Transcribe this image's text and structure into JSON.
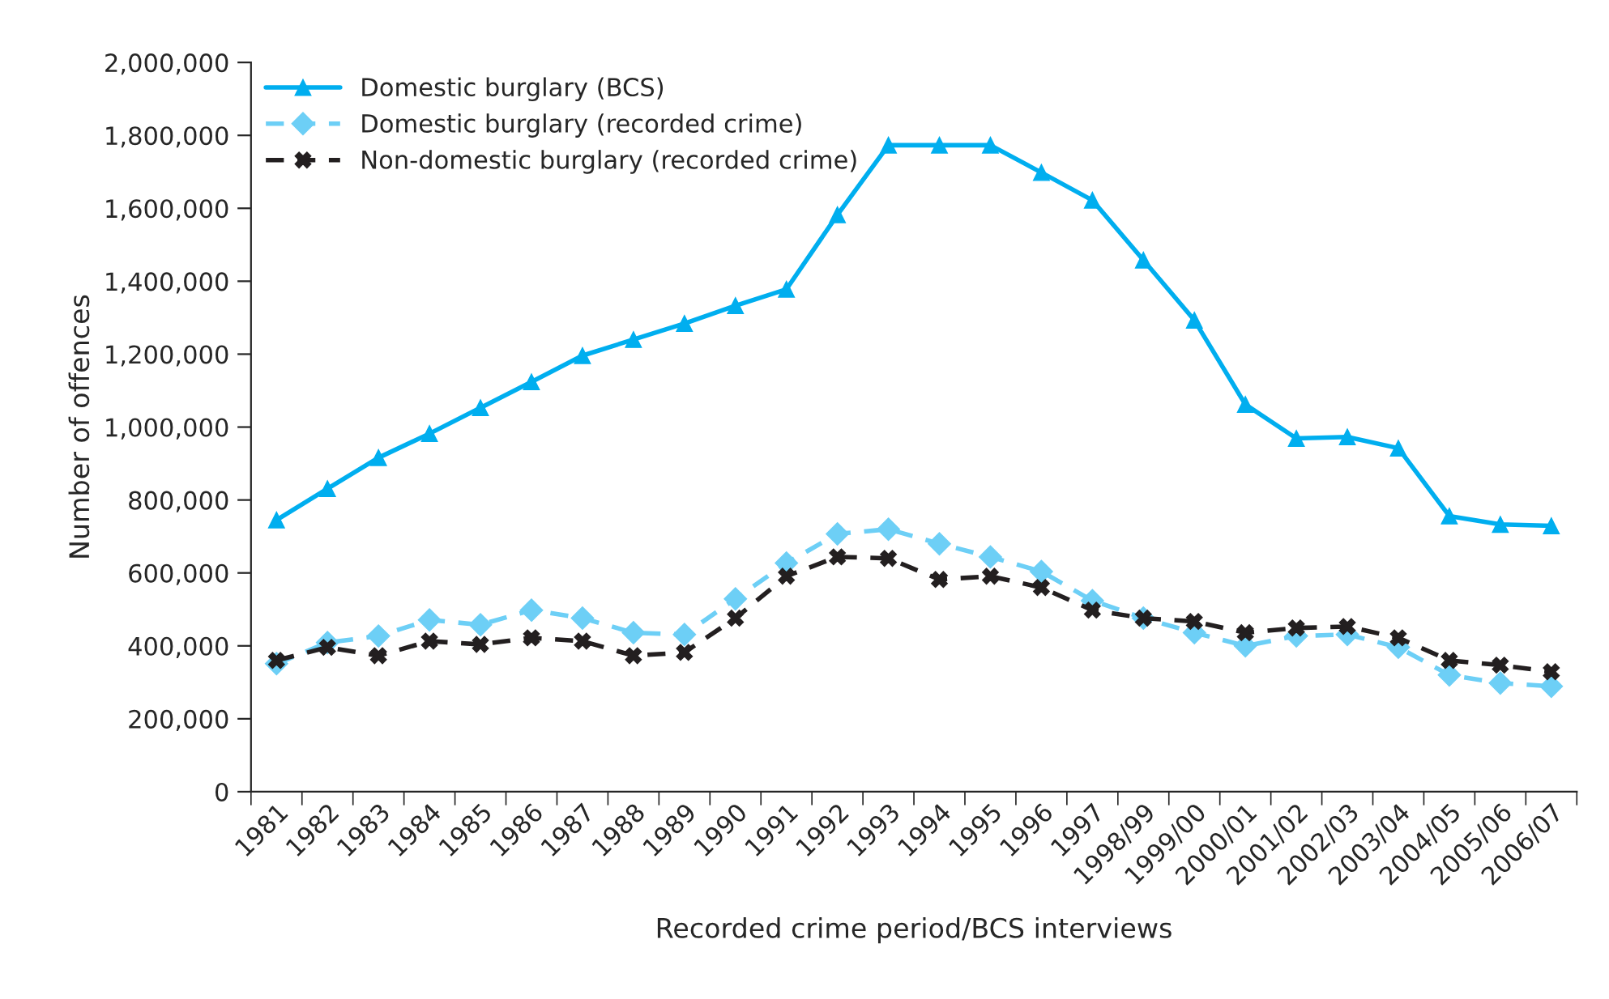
{
  "chart_data": {
    "type": "line",
    "xlabel": "Recorded crime period/BCS interviews",
    "ylabel": "Number of offences",
    "categories": [
      "1981",
      "1982",
      "1983",
      "1984",
      "1985",
      "1986",
      "1987",
      "1988",
      "1989",
      "1990",
      "1991",
      "1992",
      "1993",
      "1994",
      "1995",
      "1996",
      "1997",
      "1998/99",
      "1999/00",
      "2000/01",
      "2001/02",
      "2002/03",
      "2003/04",
      "2004/05",
      "2005/06",
      "2006/07"
    ],
    "series": [
      {
        "name": "Domestic burglary (BCS)",
        "color": "#00aeef",
        "marker": "triangle",
        "line_style": "solid",
        "values": [
          745000,
          831000,
          916000,
          982000,
          1053000,
          1124000,
          1196000,
          1240000,
          1284000,
          1333000,
          1378000,
          1582000,
          1773000,
          1773000,
          1773000,
          1698000,
          1622000,
          1458000,
          1293000,
          1062000,
          969000,
          973000,
          942000,
          756000,
          733000,
          729000
        ]
      },
      {
        "name": "Domestic burglary (recorded crime)",
        "color": "#6dcff6",
        "marker": "diamond",
        "line_style": "dashed",
        "values": [
          351000,
          409000,
          427000,
          471000,
          458000,
          498000,
          476000,
          436000,
          431000,
          529000,
          627000,
          707000,
          720000,
          680000,
          644000,
          604000,
          524000,
          476000,
          436000,
          400000,
          427000,
          431000,
          396000,
          320000,
          298000,
          289000
        ]
      },
      {
        "name": "Non-domestic burglary (recorded crime)",
        "color": "#231f20",
        "marker": "cross",
        "line_style": "dashed",
        "values": [
          360000,
          396000,
          373000,
          413000,
          404000,
          422000,
          413000,
          373000,
          382000,
          476000,
          591000,
          644000,
          640000,
          582000,
          591000,
          560000,
          498000,
          476000,
          467000,
          436000,
          449000,
          453000,
          422000,
          360000,
          347000,
          329000
        ]
      }
    ],
    "ylim": [
      0,
      2000000
    ],
    "yticks": [
      {
        "value": 0,
        "label": "0"
      },
      {
        "value": 200000,
        "label": "200,000"
      },
      {
        "value": 400000,
        "label": "400,000"
      },
      {
        "value": 600000,
        "label": "600,000"
      },
      {
        "value": 800000,
        "label": "800,000"
      },
      {
        "value": 1000000,
        "label": "1,000,000"
      },
      {
        "value": 1200000,
        "label": "1,200,000"
      },
      {
        "value": 1400000,
        "label": "1,400,000"
      },
      {
        "value": 1600000,
        "label": "1,600,000"
      },
      {
        "value": 1800000,
        "label": "1,800,000"
      },
      {
        "value": 2000000,
        "label": "2,000,000"
      }
    ],
    "grid": false,
    "legend": "top left"
  }
}
